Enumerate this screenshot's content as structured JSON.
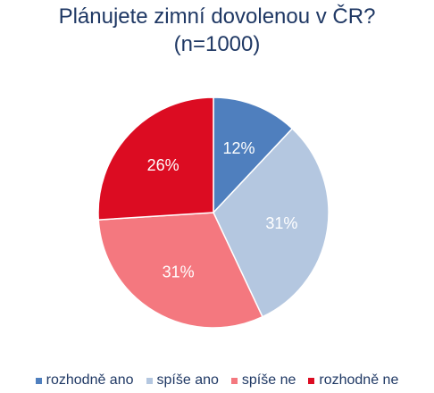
{
  "chart_data": {
    "type": "pie",
    "title": "Plánujete zimní dovolenou v ČR?",
    "subtitle": "(n=1000)",
    "categories": [
      "rozhodně ano",
      "spíše ano",
      "spíše ne",
      "rozhodně ne"
    ],
    "values": [
      12,
      31,
      31,
      26
    ],
    "data_labels": [
      "12%",
      "31%",
      "31%",
      "26%"
    ],
    "colors": [
      "#4f7fbe",
      "#b4c7e0",
      "#f4787f",
      "#dc0c22"
    ],
    "legend_position": "bottom",
    "start_angle": "12 o'clock, clockwise"
  }
}
